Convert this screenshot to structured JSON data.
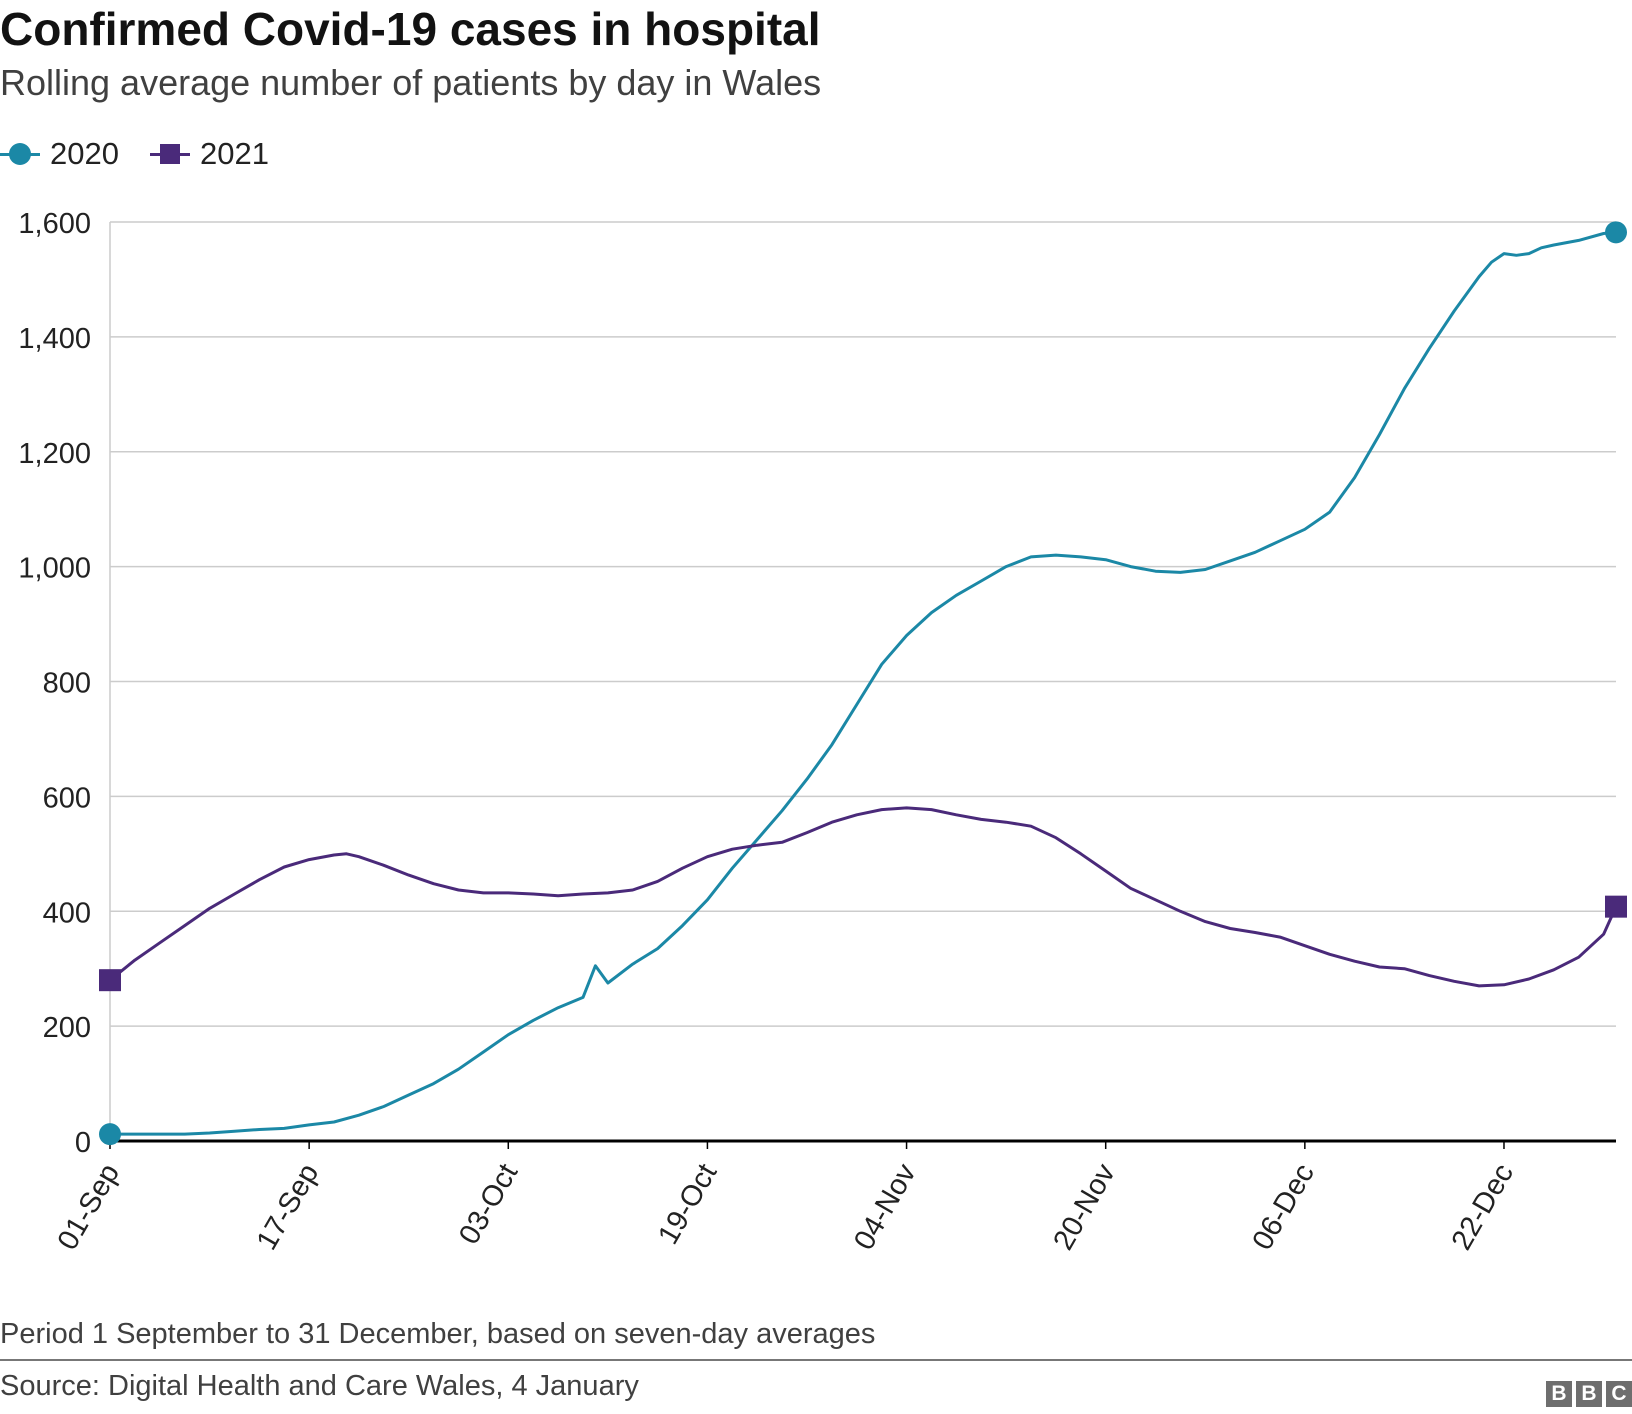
{
  "title": "Confirmed Covid-19 cases in hospital",
  "subtitle": "Rolling average number of patients by day in Wales",
  "footnote": "Period 1 September to 31 December, based on seven-day averages",
  "source": "Source: Digital Health and Care Wales, 4 January",
  "logo": [
    "B",
    "B",
    "C"
  ],
  "colors": {
    "series_2020": "#1b88a6",
    "series_2021": "#4a2a7a",
    "grid": "#cccccc",
    "baseline": "#000000",
    "text": "#222222"
  },
  "legend": [
    {
      "label": "2020",
      "marker": "circle"
    },
    {
      "label": "2021",
      "marker": "square"
    }
  ],
  "chart_data": {
    "type": "line",
    "title": "Confirmed Covid-19 cases in hospital",
    "subtitle": "Rolling average number of patients by day in Wales",
    "xlabel": "",
    "ylabel": "",
    "x_range": [
      1,
      122
    ],
    "x_unit": "day index from 01-Sep (1) to 31-Dec (122)",
    "ylim": [
      0,
      1600
    ],
    "y_ticks": [
      0,
      200,
      400,
      600,
      800,
      1000,
      1200,
      1400,
      1600
    ],
    "y_tick_labels": [
      "0",
      "200",
      "400",
      "600",
      "800",
      "1,000",
      "1,200",
      "1,400",
      "1,600"
    ],
    "x_ticks": [
      {
        "x": 1,
        "label": "01-Sep"
      },
      {
        "x": 17,
        "label": "17-Sep"
      },
      {
        "x": 33,
        "label": "03-Oct"
      },
      {
        "x": 49,
        "label": "19-Oct"
      },
      {
        "x": 65,
        "label": "04-Nov"
      },
      {
        "x": 81,
        "label": "20-Nov"
      },
      {
        "x": 97,
        "label": "06-Dec"
      },
      {
        "x": 113,
        "label": "22-Dec"
      }
    ],
    "grid": true,
    "legend_position": "top-left",
    "series": [
      {
        "name": "2020",
        "marker": "circle",
        "points": [
          [
            1,
            12
          ],
          [
            3,
            12
          ],
          [
            5,
            12
          ],
          [
            7,
            12
          ],
          [
            9,
            14
          ],
          [
            11,
            17
          ],
          [
            13,
            20
          ],
          [
            15,
            22
          ],
          [
            17,
            28
          ],
          [
            19,
            33
          ],
          [
            21,
            45
          ],
          [
            23,
            60
          ],
          [
            25,
            80
          ],
          [
            27,
            100
          ],
          [
            29,
            125
          ],
          [
            31,
            155
          ],
          [
            33,
            185
          ],
          [
            35,
            210
          ],
          [
            37,
            232
          ],
          [
            39,
            250
          ],
          [
            40,
            305
          ],
          [
            41,
            275
          ],
          [
            43,
            308
          ],
          [
            45,
            335
          ],
          [
            47,
            375
          ],
          [
            49,
            420
          ],
          [
            51,
            475
          ],
          [
            53,
            525
          ],
          [
            55,
            575
          ],
          [
            57,
            630
          ],
          [
            59,
            690
          ],
          [
            61,
            760
          ],
          [
            63,
            830
          ],
          [
            65,
            880
          ],
          [
            67,
            920
          ],
          [
            69,
            950
          ],
          [
            71,
            975
          ],
          [
            73,
            1000
          ],
          [
            75,
            1017
          ],
          [
            77,
            1020
          ],
          [
            79,
            1017
          ],
          [
            81,
            1012
          ],
          [
            83,
            1000
          ],
          [
            85,
            992
          ],
          [
            87,
            990
          ],
          [
            89,
            995
          ],
          [
            91,
            1010
          ],
          [
            93,
            1025
          ],
          [
            95,
            1045
          ],
          [
            97,
            1065
          ],
          [
            99,
            1095
          ],
          [
            101,
            1155
          ],
          [
            103,
            1230
          ],
          [
            105,
            1310
          ],
          [
            107,
            1380
          ],
          [
            109,
            1445
          ],
          [
            111,
            1505
          ],
          [
            112,
            1530
          ],
          [
            113,
            1545
          ],
          [
            114,
            1542
          ],
          [
            115,
            1545
          ],
          [
            116,
            1555
          ],
          [
            117,
            1560
          ],
          [
            119,
            1568
          ],
          [
            121,
            1580
          ],
          [
            122,
            1582
          ]
        ]
      },
      {
        "name": "2021",
        "marker": "square",
        "points": [
          [
            1,
            280
          ],
          [
            3,
            315
          ],
          [
            5,
            345
          ],
          [
            7,
            375
          ],
          [
            9,
            405
          ],
          [
            11,
            430
          ],
          [
            13,
            455
          ],
          [
            15,
            477
          ],
          [
            17,
            490
          ],
          [
            19,
            498
          ],
          [
            20,
            500
          ],
          [
            21,
            495
          ],
          [
            23,
            480
          ],
          [
            25,
            463
          ],
          [
            27,
            448
          ],
          [
            29,
            437
          ],
          [
            31,
            432
          ],
          [
            33,
            432
          ],
          [
            35,
            430
          ],
          [
            37,
            427
          ],
          [
            39,
            430
          ],
          [
            41,
            432
          ],
          [
            43,
            437
          ],
          [
            45,
            452
          ],
          [
            47,
            475
          ],
          [
            49,
            495
          ],
          [
            51,
            508
          ],
          [
            53,
            515
          ],
          [
            55,
            520
          ],
          [
            57,
            537
          ],
          [
            59,
            555
          ],
          [
            61,
            568
          ],
          [
            63,
            577
          ],
          [
            65,
            580
          ],
          [
            67,
            577
          ],
          [
            69,
            568
          ],
          [
            71,
            560
          ],
          [
            73,
            555
          ],
          [
            75,
            548
          ],
          [
            77,
            528
          ],
          [
            79,
            500
          ],
          [
            81,
            470
          ],
          [
            83,
            440
          ],
          [
            85,
            420
          ],
          [
            87,
            400
          ],
          [
            89,
            382
          ],
          [
            91,
            370
          ],
          [
            93,
            363
          ],
          [
            95,
            355
          ],
          [
            97,
            340
          ],
          [
            99,
            325
          ],
          [
            101,
            313
          ],
          [
            103,
            303
          ],
          [
            105,
            300
          ],
          [
            107,
            288
          ],
          [
            109,
            278
          ],
          [
            111,
            270
          ],
          [
            113,
            272
          ],
          [
            115,
            282
          ],
          [
            117,
            298
          ],
          [
            119,
            320
          ],
          [
            121,
            360
          ],
          [
            122,
            408
          ]
        ]
      }
    ]
  }
}
